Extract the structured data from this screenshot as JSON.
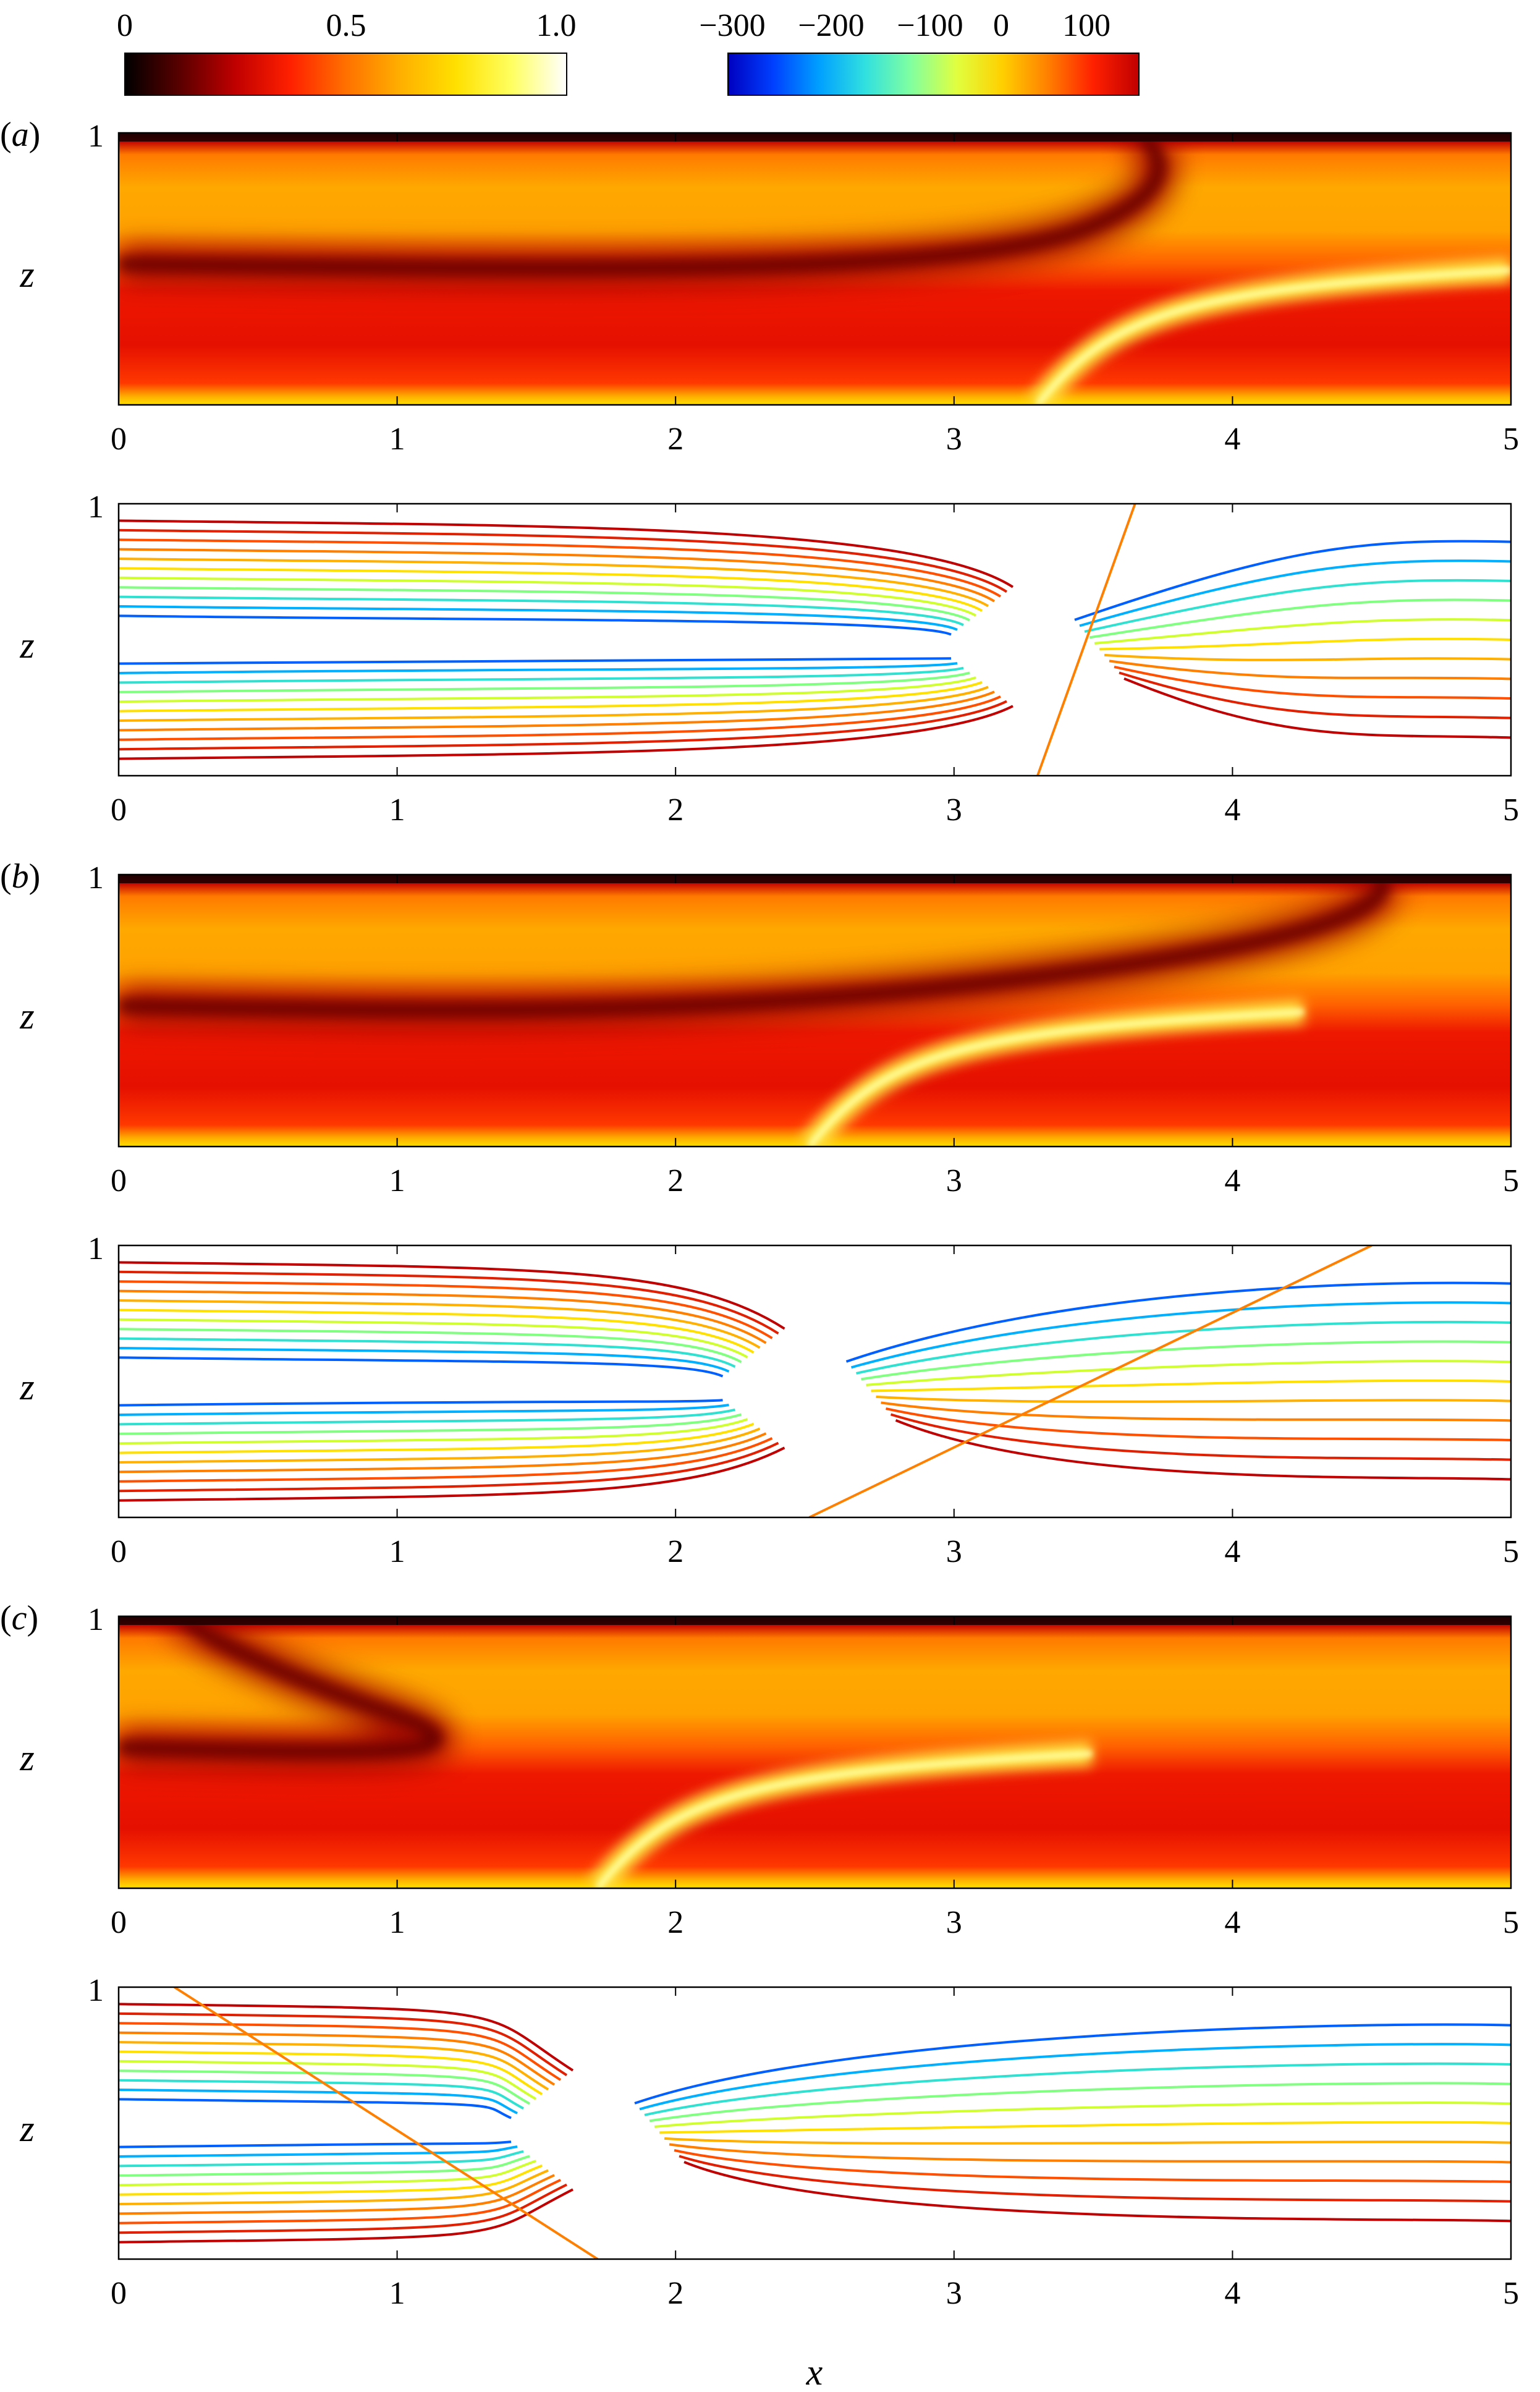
{
  "colorbars": [
    {
      "ticks": [
        "0",
        "0.5",
        "1.0"
      ],
      "stops": [
        "#000000",
        "#5a0000",
        "#c00000",
        "#ff2000",
        "#ff7000",
        "#ffb000",
        "#ffe000",
        "#ffff60",
        "#ffffff"
      ]
    },
    {
      "ticks": [
        "−300",
        "−200",
        "−100",
        "0",
        "100"
      ],
      "stops": [
        "#0000c0",
        "#0040ff",
        "#00a0ff",
        "#30e0e0",
        "#80ffa0",
        "#e0ff40",
        "#ffd000",
        "#ff8000",
        "#ff2000",
        "#c00000"
      ]
    }
  ],
  "panel_tags": [
    {
      "open": "(",
      "letter": "a",
      "close": ")"
    },
    {
      "open": "(",
      "letter": "b",
      "close": ")"
    },
    {
      "open": "(",
      "letter": "c",
      "close": ")"
    }
  ],
  "axes": {
    "xlabel": "x",
    "ylabel": "z",
    "xlim": [
      0,
      5
    ],
    "ylim": [
      0,
      1
    ],
    "xticks": [
      "0",
      "1",
      "2",
      "3",
      "4",
      "5"
    ],
    "ytick_top": "1"
  },
  "chart_data": [
    {
      "type": "heatmap",
      "panel": "a",
      "field": "filled",
      "front_x_bottom": 3.3,
      "front_x_top": 3.65
    },
    {
      "type": "line",
      "panel": "a",
      "field": "contour",
      "front_x_bottom": 3.3,
      "front_x_top": 3.65
    },
    {
      "type": "heatmap",
      "panel": "b",
      "field": "filled",
      "front_x_bottom": 2.48,
      "front_x_top": 4.5
    },
    {
      "type": "line",
      "panel": "b",
      "field": "contour",
      "front_x_bottom": 2.48,
      "front_x_top": 4.5
    },
    {
      "type": "heatmap",
      "panel": "c",
      "field": "filled",
      "front_x_bottom": 1.72,
      "front_x_top": 0.2
    },
    {
      "type": "line",
      "panel": "c",
      "field": "contour",
      "front_x_bottom": 1.72,
      "front_x_top": 0.2
    }
  ]
}
